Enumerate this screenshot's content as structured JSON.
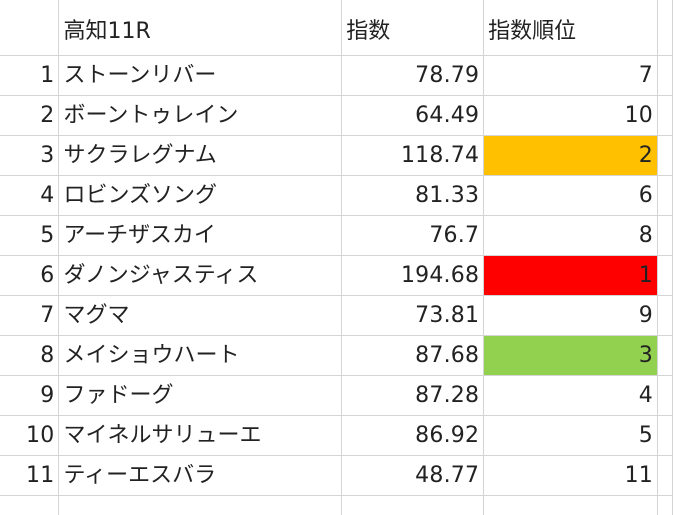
{
  "sheet": {
    "header": {
      "race": "高知11R",
      "index_label": "指数",
      "rank_label": "指数順位"
    },
    "rows": [
      {
        "no": "1",
        "name": "ストーンリバー",
        "index": "78.79",
        "rank": "7",
        "highlight": ""
      },
      {
        "no": "2",
        "name": "ボーントゥレイン",
        "index": "64.49",
        "rank": "10",
        "highlight": ""
      },
      {
        "no": "3",
        "name": "サクラレグナム",
        "index": "118.74",
        "rank": "2",
        "highlight": "#FFC000"
      },
      {
        "no": "4",
        "name": "ロビンズソング",
        "index": "81.33",
        "rank": "6",
        "highlight": ""
      },
      {
        "no": "5",
        "name": "アーチザスカイ",
        "index": "76.7",
        "rank": "8",
        "highlight": ""
      },
      {
        "no": "6",
        "name": "ダノンジャスティス",
        "index": "194.68",
        "rank": "1",
        "highlight": "#FF0000"
      },
      {
        "no": "7",
        "name": "マグマ",
        "index": "73.81",
        "rank": "9",
        "highlight": ""
      },
      {
        "no": "8",
        "name": "メイショウハート",
        "index": "87.68",
        "rank": "3",
        "highlight": "#92D050"
      },
      {
        "no": "9",
        "name": "ファドーグ",
        "index": "87.28",
        "rank": "4",
        "highlight": ""
      },
      {
        "no": "10",
        "name": "マイネルサリューエ",
        "index": "86.92",
        "rank": "5",
        "highlight": ""
      },
      {
        "no": "11",
        "name": "ティーエスバラ",
        "index": "48.77",
        "rank": "11",
        "highlight": ""
      }
    ]
  }
}
